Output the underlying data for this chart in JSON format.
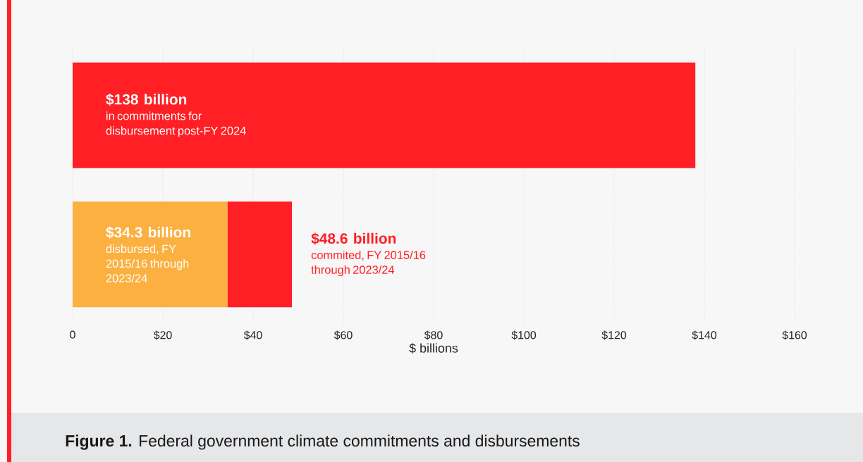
{
  "chart_data": {
    "type": "bar",
    "orientation": "horizontal",
    "stacked": true,
    "title": "**Figure 1.** Federal government climate commitments and disbursements",
    "xlabel": "$ billions",
    "categories": [
      null,
      null
    ],
    "series": [
      {
        "color": "#fbb040",
        "values": [
          null,
          34.3
        ]
      },
      {
        "color": "#ff1f24",
        "values": [
          138,
          14.3
        ]
      }
    ],
    "xlim": [
      0,
      160
    ],
    "xticks": [
      0,
      {
        "value": 20,
        "label": "$20"
      },
      {
        "value": 40,
        "label": "$40"
      },
      {
        "value": 60,
        "label": "$60"
      },
      {
        "value": 80,
        "label": "$80"
      },
      {
        "value": 100,
        "label": "$100"
      },
      {
        "value": 120,
        "label": "$120"
      },
      {
        "value": 140,
        "label": "$140"
      },
      {
        "value": 160,
        "label": "$160"
      }
    ],
    "grid": "x",
    "annotations": [
      "$138 billion",
      "in commitments for disbursement post-FY 2024",
      "$34.3 billion",
      "disbursed, FY 2015/16 through 2023/24",
      "$48.6 billion",
      "commited, FY 2015/16 through 2023/24"
    ]
  }
}
